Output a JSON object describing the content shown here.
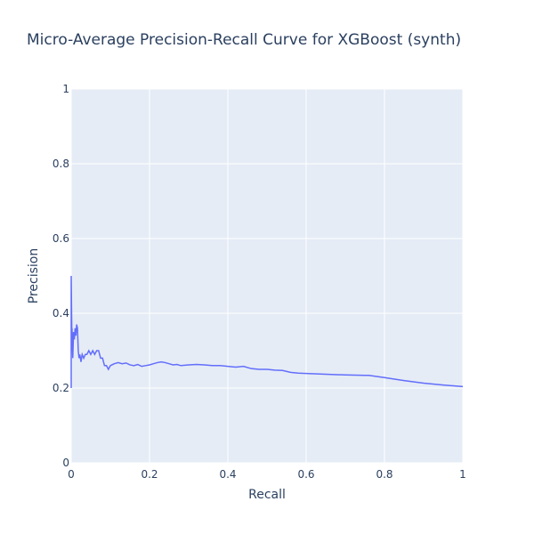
{
  "chart_data": {
    "type": "line",
    "title": "Micro-Average Precision-Recall Curve for XGBoost (synth)",
    "xlabel": "Recall",
    "ylabel": "Precision",
    "xlim": [
      0,
      1
    ],
    "ylim": [
      0,
      1
    ],
    "x_ticks": [
      "0",
      "0.2",
      "0.4",
      "0.6",
      "0.8",
      "1"
    ],
    "y_ticks": [
      "0",
      "0.2",
      "0.4",
      "0.6",
      "0.8",
      "1"
    ],
    "grid": true,
    "legend": "none",
    "colors": {
      "line": "#636efa",
      "plot_bg": "#e5ecf6",
      "grid": "#ffffff",
      "text": "#2a3f5f"
    },
    "series": [
      {
        "x": [
          0,
          0,
          0.002,
          0.002,
          0.004,
          0.006,
          0.008,
          0.01,
          0.012,
          0.014,
          0.016,
          0.018,
          0.02,
          0.022,
          0.025,
          0.028,
          0.032,
          0.036,
          0.04,
          0.045,
          0.05,
          0.055,
          0.06,
          0.065,
          0.07,
          0.075,
          0.08,
          0.085,
          0.09,
          0.095,
          0.1,
          0.11,
          0.12,
          0.13,
          0.14,
          0.15,
          0.16,
          0.17,
          0.18,
          0.19,
          0.2,
          0.21,
          0.22,
          0.23,
          0.24,
          0.25,
          0.26,
          0.27,
          0.28,
          0.29,
          0.3,
          0.32,
          0.34,
          0.36,
          0.38,
          0.4,
          0.42,
          0.44,
          0.46,
          0.48,
          0.5,
          0.52,
          0.54,
          0.56,
          0.58,
          0.6,
          0.65,
          0.7,
          0.75,
          0.76,
          0.8,
          0.85,
          0.9,
          0.95,
          1.0
        ],
        "y": [
          0.2,
          0.5,
          0.3,
          0.36,
          0.28,
          0.35,
          0.33,
          0.36,
          0.34,
          0.37,
          0.36,
          0.3,
          0.28,
          0.29,
          0.27,
          0.29,
          0.28,
          0.29,
          0.29,
          0.3,
          0.29,
          0.3,
          0.29,
          0.3,
          0.3,
          0.28,
          0.28,
          0.26,
          0.26,
          0.25,
          0.26,
          0.265,
          0.268,
          0.265,
          0.267,
          0.262,
          0.26,
          0.263,
          0.258,
          0.26,
          0.262,
          0.265,
          0.268,
          0.27,
          0.268,
          0.265,
          0.262,
          0.263,
          0.26,
          0.261,
          0.262,
          0.263,
          0.262,
          0.26,
          0.26,
          0.258,
          0.256,
          0.258,
          0.252,
          0.25,
          0.25,
          0.248,
          0.247,
          0.242,
          0.24,
          0.239,
          0.237,
          0.235,
          0.234,
          0.234,
          0.228,
          0.22,
          0.213,
          0.208,
          0.204
        ]
      }
    ]
  }
}
